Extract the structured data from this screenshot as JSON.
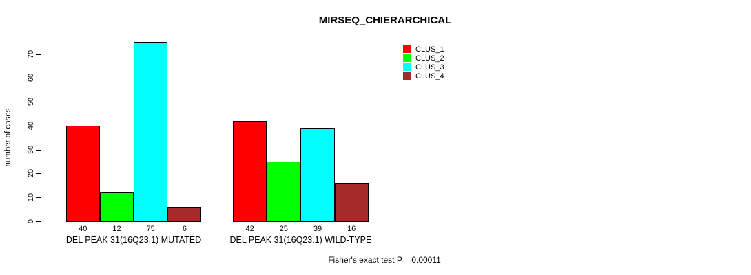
{
  "title": "MIRSEQ_CHIERARCHICAL",
  "footer": "Fisher's exact test P = 0.00011",
  "chart_data": {
    "type": "bar",
    "title": "MIRSEQ_CHIERARCHICAL",
    "xlabel": "",
    "ylabel": "number of cases",
    "ylim": [
      0,
      75
    ],
    "yticks": [
      0,
      10,
      20,
      30,
      40,
      50,
      60,
      70
    ],
    "grid": false,
    "legend_position": "top-right",
    "categories": [
      "DEL PEAK 31(16Q23.1) MUTATED",
      "DEL PEAK 31(16Q23.1) WILD-TYPE"
    ],
    "series": [
      {
        "name": "CLUS_1",
        "color": "#ff0000",
        "values": [
          40,
          42
        ]
      },
      {
        "name": "CLUS_2",
        "color": "#00ff00",
        "values": [
          12,
          25
        ]
      },
      {
        "name": "CLUS_3",
        "color": "#00ffff",
        "values": [
          75,
          39
        ]
      },
      {
        "name": "CLUS_4",
        "color": "#a52a2a",
        "values": [
          6,
          16
        ]
      }
    ],
    "bar_value_labels": [
      [
        40,
        12,
        75,
        6
      ],
      [
        42,
        25,
        39,
        16
      ]
    ],
    "annotation": "Fisher's exact test P = 0.00011"
  }
}
